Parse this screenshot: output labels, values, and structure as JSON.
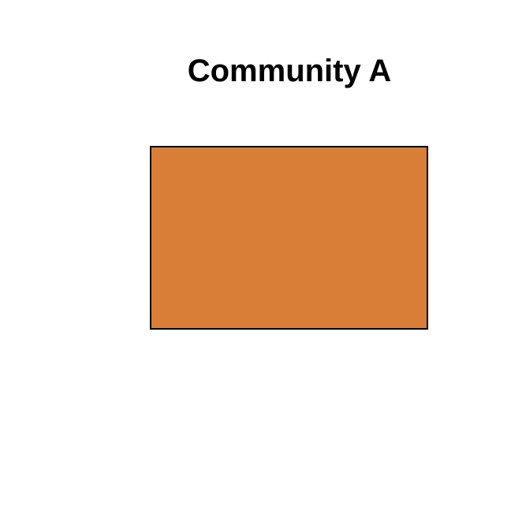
{
  "title": "Community A",
  "block": {
    "fill": "#D97E36",
    "border": "#000000"
  }
}
